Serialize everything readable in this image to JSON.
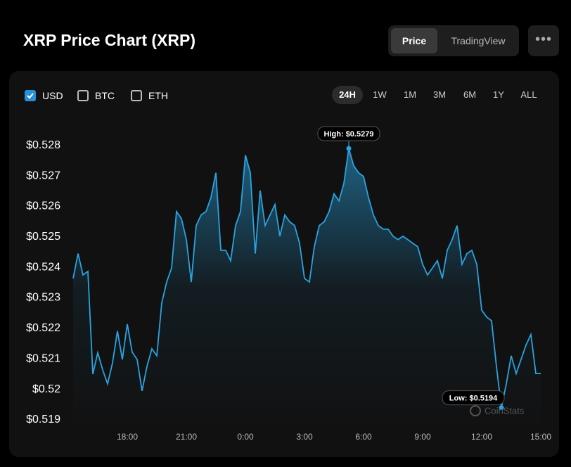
{
  "header": {
    "tabs": [
      "Price",
      "TradingView"
    ],
    "active_tab": 0
  },
  "controls": {
    "currencies": [
      {
        "label": "USD",
        "checked": true
      },
      {
        "label": "BTC",
        "checked": false
      },
      {
        "label": "ETH",
        "checked": false
      }
    ],
    "ranges": [
      "24H",
      "1W",
      "1M",
      "3M",
      "6M",
      "1Y",
      "ALL"
    ],
    "active_range": 0
  },
  "chart_data": {
    "type": "line",
    "title": "XRP Price Chart (XRP)",
    "watermark": "CoinStats",
    "annotations": [
      "High: $0.5279",
      "Low: $0.5194"
    ],
    "color": "#2aa3e0",
    "area": true,
    "x": [
      "15:15",
      "15:30",
      "15:45",
      "16:00",
      "16:15",
      "16:30",
      "16:45",
      "17:00",
      "17:15",
      "17:30",
      "17:45",
      "18:00",
      "18:15",
      "18:30",
      "18:45",
      "19:00",
      "19:15",
      "19:30",
      "19:45",
      "20:00",
      "20:15",
      "20:30",
      "20:45",
      "21:00",
      "21:15",
      "21:30",
      "21:45",
      "22:00",
      "22:15",
      "22:30",
      "22:45",
      "23:00",
      "23:15",
      "23:30",
      "23:45",
      "0:00",
      "0:15",
      "0:30",
      "0:45",
      "1:00",
      "1:15",
      "1:30",
      "1:45",
      "2:00",
      "2:15",
      "2:30",
      "2:45",
      "3:00",
      "3:15",
      "3:30",
      "3:45",
      "4:00",
      "4:15",
      "4:30",
      "4:45",
      "5:00",
      "5:15",
      "5:30",
      "5:45",
      "6:00",
      "6:15",
      "6:30",
      "6:45",
      "7:00",
      "7:15",
      "7:30",
      "7:45",
      "8:00",
      "8:15",
      "8:30",
      "8:45",
      "9:00",
      "9:15",
      "9:30",
      "9:45",
      "10:00",
      "10:15",
      "10:30",
      "10:45",
      "11:00",
      "11:15",
      "11:30",
      "11:45",
      "12:00",
      "12:15",
      "12:30",
      "12:45",
      "13:00",
      "13:15",
      "13:30",
      "13:45",
      "14:00",
      "14:15",
      "14:30",
      "14:45",
      "15:00"
    ],
    "values": [
      0.52364,
      0.52445,
      0.52375,
      0.52387,
      0.5205,
      0.5212,
      0.52064,
      0.52018,
      0.52087,
      0.52191,
      0.52098,
      0.52214,
      0.52122,
      0.52098,
      0.51995,
      0.52075,
      0.52133,
      0.5211,
      0.52283,
      0.52352,
      0.52398,
      0.52583,
      0.5256,
      0.52491,
      0.52352,
      0.52537,
      0.52572,
      0.52583,
      0.52629,
      0.5271,
      0.52456,
      0.52456,
      0.52422,
      0.52537,
      0.52583,
      0.52768,
      0.5271,
      0.52445,
      0.52652,
      0.52537,
      0.52572,
      0.52606,
      0.52502,
      0.52572,
      0.52549,
      0.52537,
      0.52479,
      0.52364,
      0.52352,
      0.52468,
      0.52537,
      0.52549,
      0.52583,
      0.52641,
      0.52618,
      0.52675,
      0.5279,
      0.52733,
      0.5271,
      0.52698,
      0.52629,
      0.52572,
      0.52537,
      0.52525,
      0.52525,
      0.52502,
      0.52491,
      0.52502,
      0.52491,
      0.52479,
      0.52468,
      0.5241,
      0.52375,
      0.52398,
      0.52422,
      0.52364,
      0.52456,
      0.52491,
      0.52537,
      0.5241,
      0.52445,
      0.52456,
      0.5241,
      0.5226,
      0.52237,
      0.52225,
      0.52075,
      0.5194,
      0.52018,
      0.5211,
      0.52052,
      0.52098,
      0.52145,
      0.5218,
      0.52052,
      0.52052
    ],
    "ylim": [
      0.5187,
      0.5285
    ],
    "yticks": [
      {
        "value": 0.519,
        "label": "$0.519"
      },
      {
        "value": 0.52,
        "label": "$0.52"
      },
      {
        "value": 0.521,
        "label": "$0.521"
      },
      {
        "value": 0.522,
        "label": "$0.522"
      },
      {
        "value": 0.523,
        "label": "$0.523"
      },
      {
        "value": 0.524,
        "label": "$0.524"
      },
      {
        "value": 0.525,
        "label": "$0.525"
      },
      {
        "value": 0.526,
        "label": "$0.526"
      },
      {
        "value": 0.527,
        "label": "$0.527"
      },
      {
        "value": 0.528,
        "label": "$0.528"
      }
    ],
    "xticks": [
      "18:00",
      "21:00",
      "0:00",
      "3:00",
      "6:00",
      "9:00",
      "12:00",
      "15:00"
    ]
  }
}
